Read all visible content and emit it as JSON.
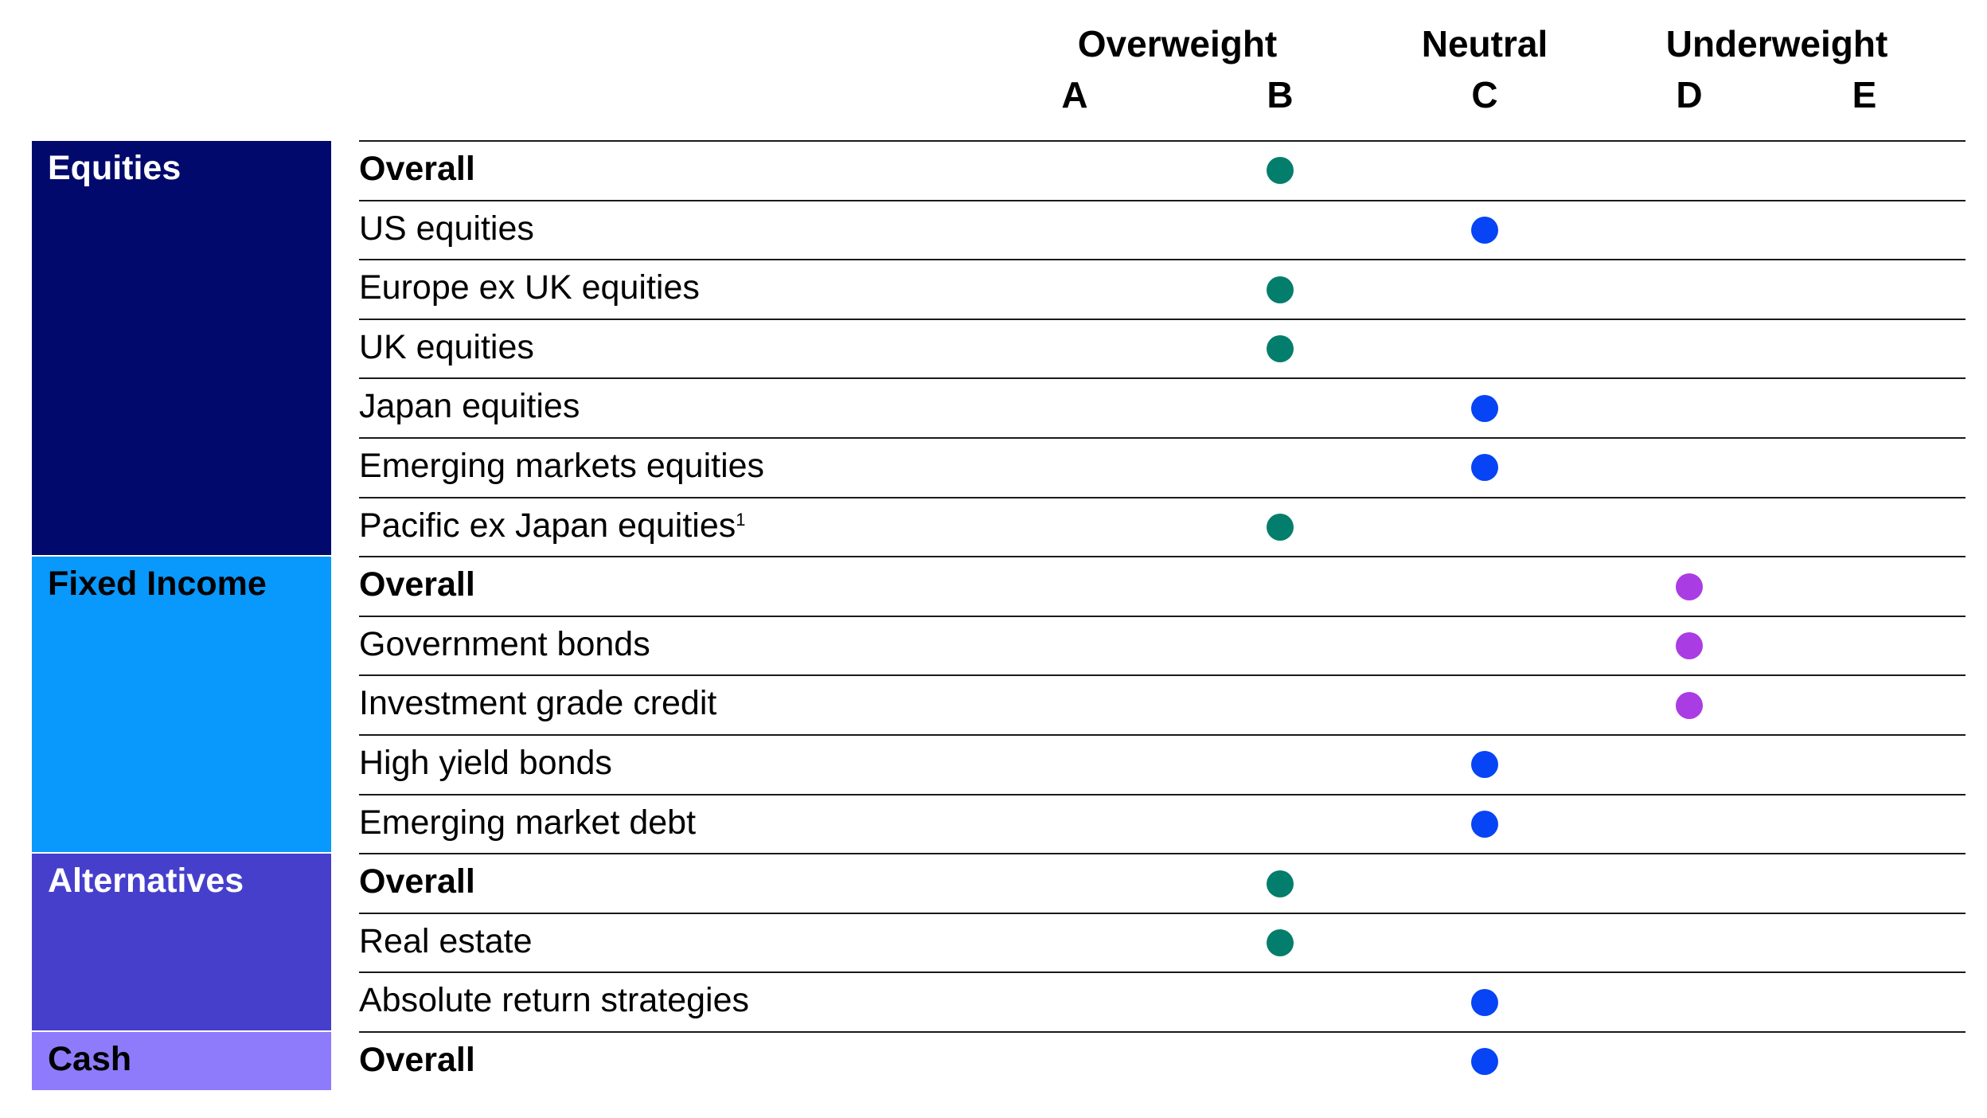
{
  "chart_data": {
    "type": "table",
    "group_headers": [
      {
        "label": "Overweight",
        "over": [
          "A",
          "B"
        ]
      },
      {
        "label": "Neutral",
        "over": [
          "C"
        ]
      },
      {
        "label": "Underweight",
        "over": [
          "D",
          "E"
        ]
      }
    ],
    "columns": [
      "A",
      "B",
      "C",
      "D",
      "E"
    ],
    "categories": [
      {
        "name": "Equities",
        "color": "#010a6c",
        "text_color": "#ffffff",
        "rows": [
          {
            "label": "Overall",
            "bold": true,
            "rating": "B"
          },
          {
            "label": "US equities",
            "bold": false,
            "rating": "C"
          },
          {
            "label": "Europe ex UK equities",
            "bold": false,
            "rating": "B"
          },
          {
            "label": "UK equities",
            "bold": false,
            "rating": "B"
          },
          {
            "label": "Japan equities",
            "bold": false,
            "rating": "C"
          },
          {
            "label": "Emerging markets equities",
            "bold": false,
            "rating": "C"
          },
          {
            "label": "Pacific ex Japan equities",
            "footnote": "1",
            "bold": false,
            "rating": "B"
          }
        ]
      },
      {
        "name": "Fixed Income",
        "color": "#0998fb",
        "text_color": "#000000",
        "rows": [
          {
            "label": "Overall",
            "bold": true,
            "rating": "D"
          },
          {
            "label": "Government bonds",
            "bold": false,
            "rating": "D"
          },
          {
            "label": "Investment grade credit",
            "bold": false,
            "rating": "D"
          },
          {
            "label": "High yield bonds",
            "bold": false,
            "rating": "C"
          },
          {
            "label": "Emerging market debt",
            "bold": false,
            "rating": "C"
          }
        ]
      },
      {
        "name": "Alternatives",
        "color": "#463fcc",
        "text_color": "#ffffff",
        "rows": [
          {
            "label": "Overall",
            "bold": true,
            "rating": "B"
          },
          {
            "label": "Real estate",
            "bold": false,
            "rating": "B"
          },
          {
            "label": "Absolute return strategies",
            "bold": false,
            "rating": "C"
          }
        ]
      },
      {
        "name": "Cash",
        "color": "#8e7bfc",
        "text_color": "#000000",
        "rows": [
          {
            "label": "Overall",
            "bold": true,
            "rating": "C"
          }
        ]
      }
    ],
    "rating_colors": {
      "A": "#047e6c",
      "B": "#047e6c",
      "C": "#0744f6",
      "D": "#aa3ce4",
      "E": "#aa3ce4"
    }
  }
}
